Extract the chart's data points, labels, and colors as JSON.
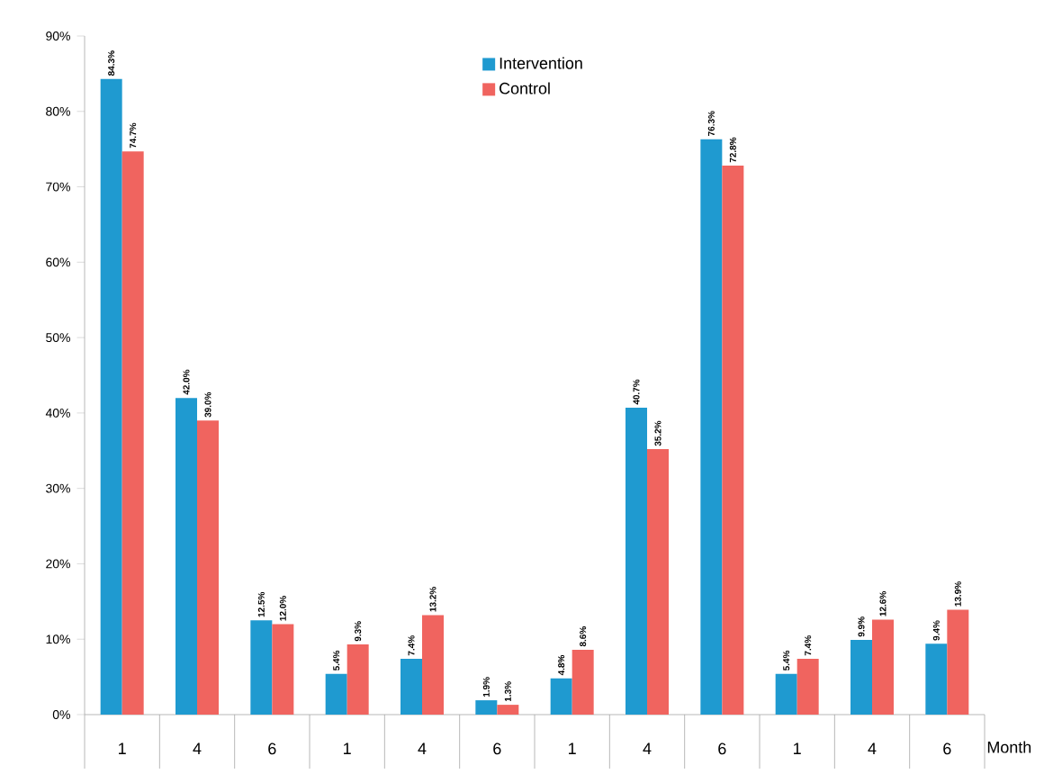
{
  "chart_data": {
    "type": "bar",
    "xlabel": "Month",
    "categories": [
      "1",
      "4",
      "6",
      "1",
      "4",
      "6",
      "1",
      "4",
      "6",
      "1",
      "4",
      "6"
    ],
    "series": [
      {
        "name": "Intervention",
        "color": "#1f9ad0",
        "values": [
          84.3,
          42.0,
          12.5,
          5.4,
          7.4,
          1.9,
          4.8,
          40.7,
          76.3,
          5.4,
          9.9,
          9.4
        ],
        "value_labels": [
          "84.3%",
          "42.0%",
          "12.5%",
          "5.4%",
          "7.4%",
          "1.9%",
          "4.8%",
          "40.7%",
          "76.3%",
          "5.4%",
          "9.9%",
          "9.4%"
        ]
      },
      {
        "name": "Control",
        "color": "#f0645f",
        "values": [
          74.7,
          39.0,
          12.0,
          9.3,
          13.2,
          1.3,
          8.6,
          35.2,
          72.8,
          7.4,
          12.6,
          13.9
        ],
        "value_labels": [
          "74.7%",
          "39.0%",
          "12.0%",
          "9.3%",
          "13.2%",
          "1.3%",
          "8.6%",
          "35.2%",
          "72.8%",
          "7.4%",
          "12.6%",
          "13.9%"
        ]
      }
    ],
    "ylim": [
      0,
      90
    ],
    "yticks": [
      {
        "value": 0,
        "label": "0%"
      },
      {
        "value": 10,
        "label": "10%"
      },
      {
        "value": 20,
        "label": "20%"
      },
      {
        "value": 30,
        "label": "30%"
      },
      {
        "value": 40,
        "label": "40%"
      },
      {
        "value": 50,
        "label": "50%"
      },
      {
        "value": 60,
        "label": "60%"
      },
      {
        "value": 70,
        "label": "70%"
      },
      {
        "value": 80,
        "label": "80%"
      },
      {
        "value": 90,
        "label": "90%"
      }
    ],
    "grid": false,
    "legend": "top"
  }
}
